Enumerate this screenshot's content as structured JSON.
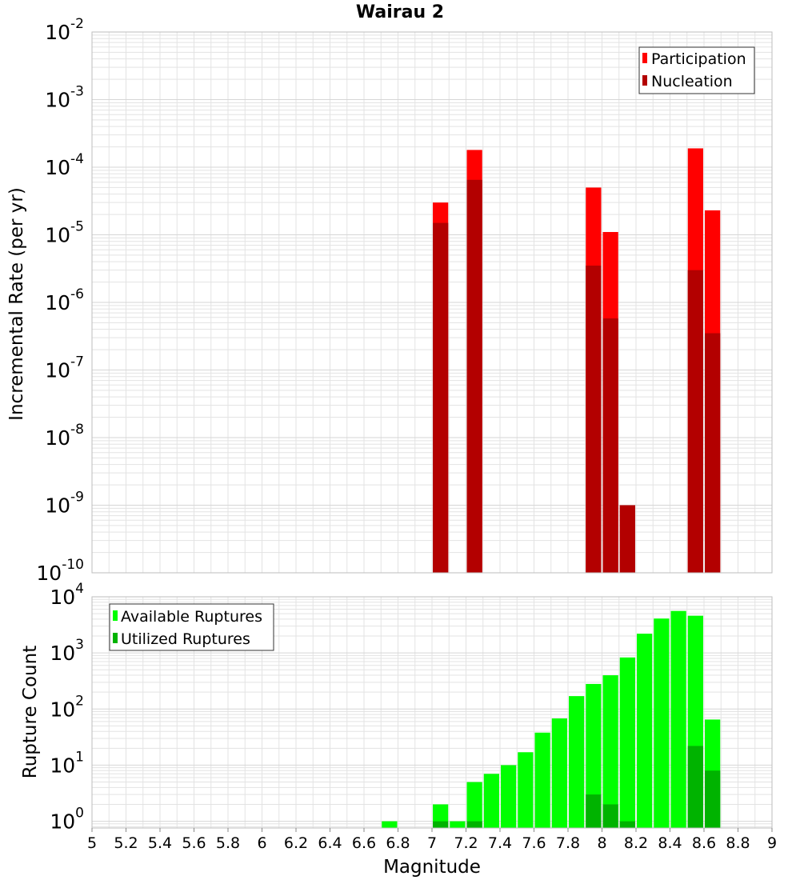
{
  "title": "Wairau 2",
  "colors": {
    "participation": "#ff0000",
    "nucleation": "#b30000",
    "available": "#00ff00",
    "utilized": "#00b300",
    "grid": "#e3e3e3",
    "frame": "#bdbdbd"
  },
  "chart_data": [
    {
      "type": "bar",
      "name": "rate-panel",
      "log_scale": true,
      "ylabel": "Incremental Rate (per yr)",
      "xlabel": "",
      "xlim": [
        5,
        9
      ],
      "ylim_exp": [
        -10,
        -2
      ],
      "y_tick_exponents": [
        "-10",
        "-9",
        "-8",
        "-7",
        "-6",
        "-5",
        "-4",
        "-3",
        "-2"
      ],
      "grid": true,
      "legend_position": "top-right",
      "series": [
        {
          "name": "Participation",
          "color": "#ff0000",
          "points": [
            {
              "x": 7.05,
              "y": 3e-05
            },
            {
              "x": 7.25,
              "y": 0.00018
            },
            {
              "x": 7.95,
              "y": 5e-05
            },
            {
              "x": 8.05,
              "y": 1.1e-05
            },
            {
              "x": 8.15,
              "y": 1e-09
            },
            {
              "x": 8.55,
              "y": 0.00019
            },
            {
              "x": 8.65,
              "y": 2.3e-05
            }
          ]
        },
        {
          "name": "Nucleation",
          "color": "#b30000",
          "points": [
            {
              "x": 7.05,
              "y": 1.5e-05
            },
            {
              "x": 7.25,
              "y": 6.5e-05
            },
            {
              "x": 7.95,
              "y": 3.5e-06
            },
            {
              "x": 8.05,
              "y": 5.8e-07
            },
            {
              "x": 8.15,
              "y": 1e-09
            },
            {
              "x": 8.55,
              "y": 3e-06
            },
            {
              "x": 8.65,
              "y": 3.5e-07
            }
          ]
        }
      ]
    },
    {
      "type": "bar",
      "name": "count-panel",
      "log_scale": true,
      "ylabel": "Rupture Count",
      "xlabel": "Magnitude",
      "xlim": [
        5,
        9
      ],
      "ylim_exp": [
        -0.12,
        4.0
      ],
      "y_tick_exponents": [
        "0",
        "1",
        "2",
        "3",
        "4"
      ],
      "x_tick_labels": [
        "5",
        "5.2",
        "5.4",
        "5.6",
        "5.8",
        "6",
        "6.2",
        "6.4",
        "6.6",
        "6.8",
        "7",
        "7.2",
        "7.4",
        "7.6",
        "7.8",
        "8",
        "8.2",
        "8.4",
        "8.6",
        "8.8",
        "9"
      ],
      "grid": true,
      "legend_position": "top-left",
      "series": [
        {
          "name": "Available Ruptures",
          "color": "#00ff00",
          "points": [
            {
              "x": 6.75,
              "y": 1
            },
            {
              "x": 7.05,
              "y": 2
            },
            {
              "x": 7.15,
              "y": 1
            },
            {
              "x": 7.25,
              "y": 5
            },
            {
              "x": 7.35,
              "y": 7
            },
            {
              "x": 7.45,
              "y": 10
            },
            {
              "x": 7.55,
              "y": 17
            },
            {
              "x": 7.65,
              "y": 38
            },
            {
              "x": 7.75,
              "y": 68
            },
            {
              "x": 7.85,
              "y": 170
            },
            {
              "x": 7.95,
              "y": 280
            },
            {
              "x": 8.05,
              "y": 400
            },
            {
              "x": 8.15,
              "y": 830
            },
            {
              "x": 8.25,
              "y": 2200
            },
            {
              "x": 8.35,
              "y": 4100
            },
            {
              "x": 8.45,
              "y": 5600
            },
            {
              "x": 8.55,
              "y": 4600
            },
            {
              "x": 8.65,
              "y": 65
            }
          ]
        },
        {
          "name": "Utilized Ruptures",
          "color": "#00b300",
          "points": [
            {
              "x": 7.05,
              "y": 1
            },
            {
              "x": 7.25,
              "y": 1
            },
            {
              "x": 7.95,
              "y": 3
            },
            {
              "x": 8.05,
              "y": 2
            },
            {
              "x": 8.15,
              "y": 1
            },
            {
              "x": 8.55,
              "y": 22
            },
            {
              "x": 8.65,
              "y": 8
            }
          ]
        }
      ]
    }
  ]
}
